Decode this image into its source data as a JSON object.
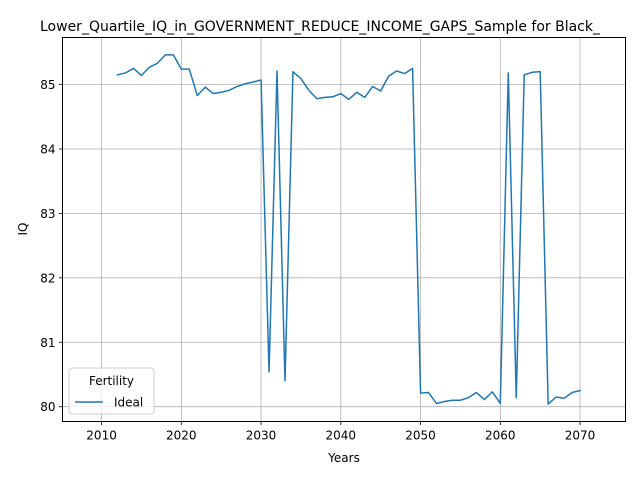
{
  "chart_data": {
    "type": "line",
    "title": "Lower_Quartile_IQ_in_GOVERNMENT_REDUCE_INCOME_GAPS_Sample for Black_",
    "xlabel": "Years",
    "ylabel": "IQ",
    "xlim": [
      2005.1,
      2075.7
    ],
    "ylim": [
      79.77,
      85.73
    ],
    "xticks": [
      2010,
      2020,
      2030,
      2040,
      2050,
      2060,
      2070
    ],
    "yticks": [
      80,
      81,
      82,
      83,
      84,
      85
    ],
    "grid": true,
    "legend": {
      "title": "Fertility",
      "location": "lower-left"
    },
    "series": [
      {
        "name": "Ideal",
        "color": "#1f77b4",
        "x": [
          2012,
          2013,
          2014,
          2015,
          2016,
          2017,
          2018,
          2019,
          2020,
          2021,
          2022,
          2023,
          2024,
          2025,
          2026,
          2027,
          2028,
          2029,
          2030,
          2031,
          2032,
          2033,
          2034,
          2035,
          2036,
          2037,
          2038,
          2039,
          2040,
          2041,
          2042,
          2043,
          2044,
          2045,
          2046,
          2047,
          2048,
          2049,
          2050,
          2051,
          2052,
          2053,
          2054,
          2055,
          2056,
          2057,
          2058,
          2059,
          2060,
          2061,
          2062,
          2063,
          2064,
          2065,
          2066,
          2067,
          2068,
          2069,
          2070
        ],
        "values": [
          85.15,
          85.18,
          85.25,
          85.14,
          85.27,
          85.33,
          85.46,
          85.46,
          85.24,
          85.24,
          84.83,
          84.96,
          84.86,
          84.88,
          84.91,
          84.97,
          85.01,
          85.04,
          85.07,
          80.54,
          85.21,
          80.4,
          85.2,
          85.09,
          84.91,
          84.78,
          84.8,
          84.81,
          84.86,
          84.77,
          84.88,
          84.8,
          84.97,
          84.9,
          85.13,
          85.21,
          85.17,
          85.25,
          80.21,
          80.22,
          80.05,
          80.08,
          80.1,
          80.1,
          80.14,
          80.22,
          80.11,
          80.23,
          80.05,
          85.18,
          80.14,
          85.15,
          85.19,
          85.2,
          80.04,
          80.15,
          80.13,
          80.22,
          80.25
        ]
      }
    ]
  }
}
